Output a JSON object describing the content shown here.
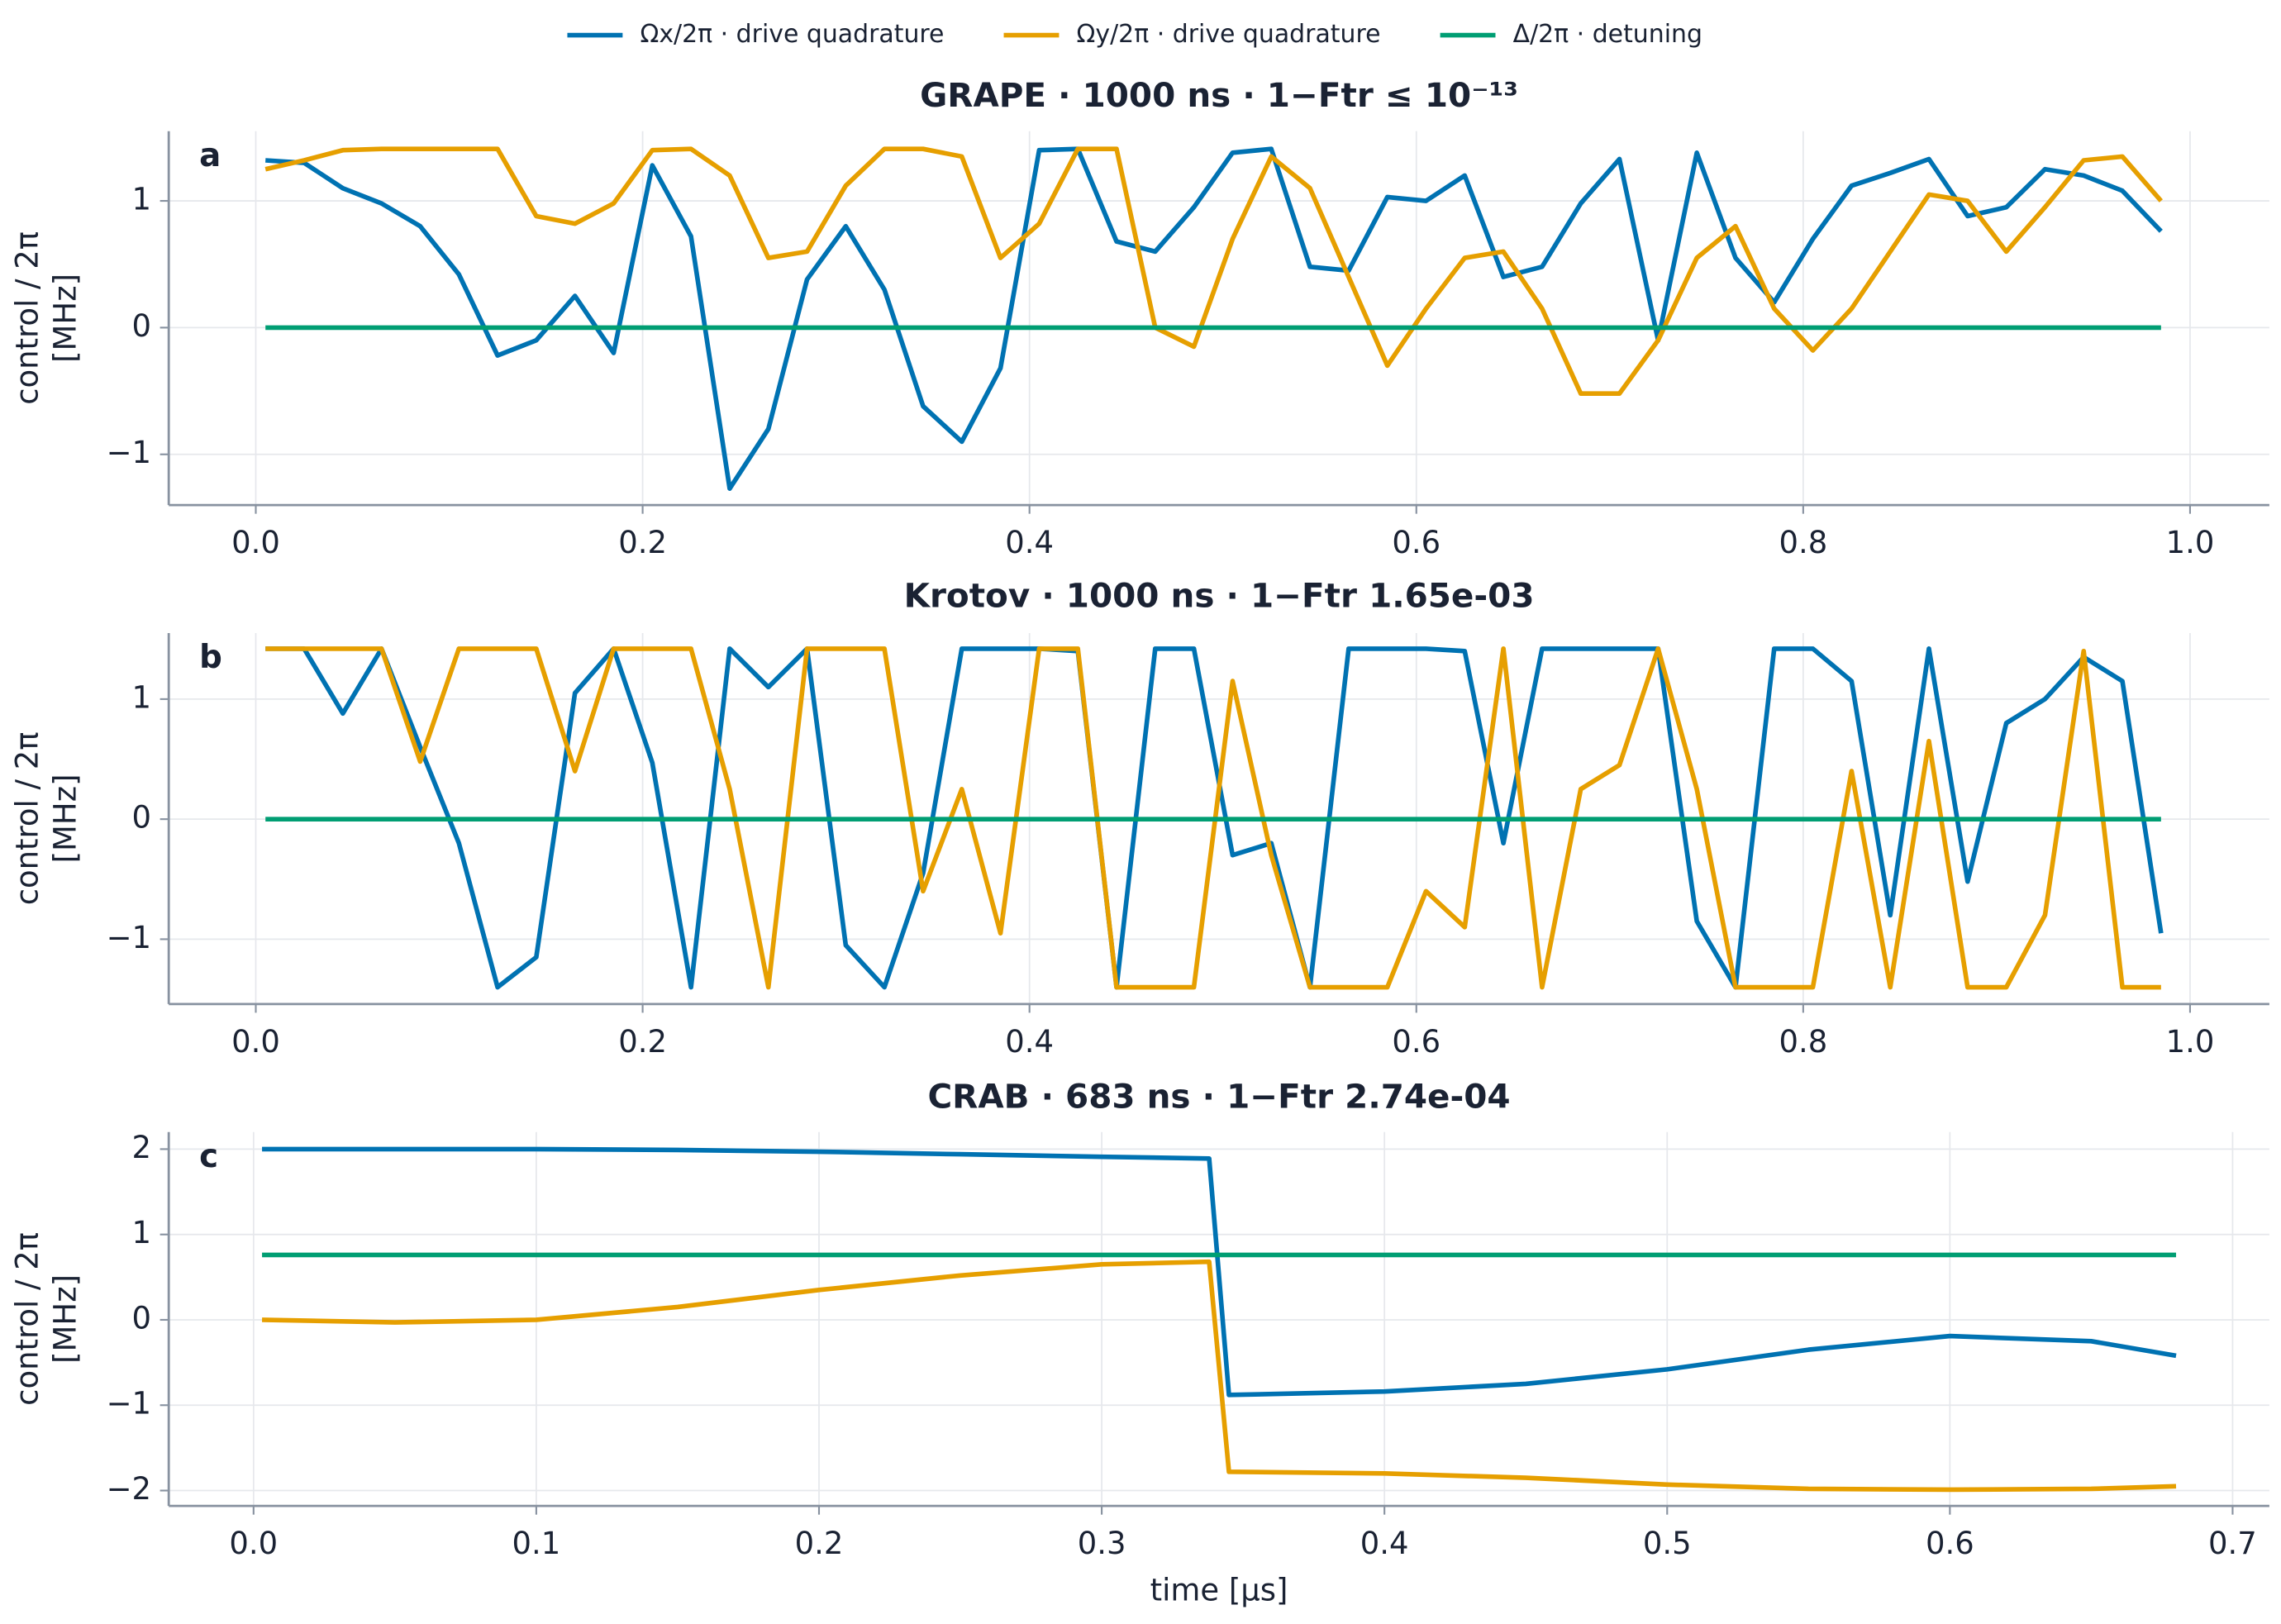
{
  "chart_data": [
    {
      "type": "line",
      "panel": "a",
      "title": "GRAPE · 1000 ns · 1−Ftr ≤ 10⁻¹³",
      "ylabel": [
        "control / 2π",
        "[MHz]"
      ],
      "xlim": [
        -0.045,
        1.041
      ],
      "ylim": [
        -1.4,
        1.55
      ],
      "grid": true,
      "xticks": [
        {
          "value": 0,
          "label": "0.0"
        },
        0.2,
        0.4,
        0.6,
        0.8,
        {
          "value": 1,
          "label": "1.0"
        }
      ],
      "yticks": [
        {
          "value": -1,
          "label": "−1"
        },
        0,
        1
      ],
      "x": [
        0.005,
        0.025,
        0.045,
        0.065,
        0.085,
        0.105,
        0.125,
        0.145,
        0.165,
        0.185,
        0.205,
        0.225,
        0.245,
        0.265,
        0.285,
        0.305,
        0.325,
        0.345,
        0.365,
        0.385,
        0.405,
        0.425,
        0.445,
        0.465,
        0.485,
        0.505,
        0.525,
        0.545,
        0.565,
        0.585,
        0.605,
        0.625,
        0.645,
        0.665,
        0.685,
        0.705,
        0.725,
        0.745,
        0.765,
        0.785,
        0.805,
        0.825,
        0.845,
        0.865,
        0.885,
        0.905,
        0.925,
        0.945,
        0.965,
        0.985
      ],
      "series": [
        {
          "name": "Ωx/2π · drive quadrature",
          "color": "#0072b2",
          "values": [
            1.32,
            1.3,
            1.1,
            0.98,
            0.8,
            0.42,
            -0.22,
            -0.1,
            0.25,
            -0.2,
            1.28,
            0.72,
            -1.27,
            -0.8,
            0.38,
            0.8,
            0.3,
            -0.62,
            -0.9,
            -0.32,
            1.4,
            1.41,
            0.68,
            0.6,
            0.95,
            1.38,
            1.41,
            0.48,
            0.45,
            1.03,
            1.0,
            1.2,
            0.4,
            0.48,
            0.98,
            1.33,
            -0.1,
            1.38,
            0.55,
            0.2,
            0.7,
            1.12,
            1.22,
            1.33,
            0.88,
            0.95,
            1.25,
            1.2,
            1.08,
            0.76
          ]
        },
        {
          "name": "Ωy/2π · drive quadrature",
          "color": "#e69f00",
          "values": [
            1.25,
            1.32,
            1.4,
            1.41,
            1.41,
            1.41,
            1.41,
            0.88,
            0.82,
            0.98,
            1.4,
            1.41,
            1.2,
            0.55,
            0.6,
            1.12,
            1.41,
            1.41,
            1.35,
            0.55,
            0.82,
            1.41,
            1.41,
            0.0,
            -0.15,
            0.7,
            1.35,
            1.1,
            0.4,
            -0.3,
            0.15,
            0.55,
            0.6,
            0.15,
            -0.52,
            -0.52,
            -0.1,
            0.55,
            0.8,
            0.15,
            -0.18,
            0.15,
            0.6,
            1.05,
            1.0,
            0.6,
            0.95,
            1.32,
            1.35,
            1.0
          ]
        },
        {
          "name": "Δ/2π · detuning",
          "color": "#009e73",
          "values": [
            0,
            0,
            0,
            0,
            0,
            0,
            0,
            0,
            0,
            0,
            0,
            0,
            0,
            0,
            0,
            0,
            0,
            0,
            0,
            0,
            0,
            0,
            0,
            0,
            0,
            0,
            0,
            0,
            0,
            0,
            0,
            0,
            0,
            0,
            0,
            0,
            0,
            0,
            0,
            0,
            0,
            0,
            0,
            0,
            0,
            0,
            0,
            0,
            0,
            0
          ]
        }
      ]
    },
    {
      "type": "line",
      "panel": "b",
      "title": "Krotov · 1000 ns · 1−Ftr 1.65e-03",
      "ylabel": [
        "control / 2π",
        "[MHz]"
      ],
      "xlim": [
        -0.045,
        1.041
      ],
      "ylim": [
        -1.54,
        1.55
      ],
      "grid": true,
      "xticks": [
        {
          "value": 0,
          "label": "0.0"
        },
        0.2,
        0.4,
        0.6,
        0.8,
        {
          "value": 1,
          "label": "1.0"
        }
      ],
      "yticks": [
        {
          "value": -1,
          "label": "−1"
        },
        0,
        1
      ],
      "x": [
        0.005,
        0.025,
        0.045,
        0.065,
        0.085,
        0.105,
        0.125,
        0.145,
        0.165,
        0.185,
        0.205,
        0.225,
        0.245,
        0.265,
        0.285,
        0.305,
        0.325,
        0.345,
        0.365,
        0.385,
        0.405,
        0.425,
        0.445,
        0.465,
        0.485,
        0.505,
        0.525,
        0.545,
        0.565,
        0.585,
        0.605,
        0.625,
        0.645,
        0.665,
        0.685,
        0.705,
        0.725,
        0.745,
        0.765,
        0.785,
        0.805,
        0.825,
        0.845,
        0.865,
        0.885,
        0.905,
        0.925,
        0.945,
        0.965,
        0.985
      ],
      "series": [
        {
          "color": "#0072b2",
          "values": [
            1.42,
            1.42,
            0.88,
            1.42,
            0.6,
            -0.2,
            -1.4,
            -1.15,
            1.05,
            1.42,
            0.47,
            -1.4,
            1.42,
            1.1,
            1.42,
            -1.05,
            -1.4,
            -0.45,
            1.42,
            1.42,
            1.42,
            1.4,
            -1.4,
            1.42,
            1.42,
            -0.3,
            -0.2,
            -1.4,
            1.42,
            1.42,
            1.42,
            1.4,
            -0.2,
            1.42,
            1.42,
            1.42,
            1.42,
            -0.85,
            -1.4,
            1.42,
            1.42,
            1.15,
            -0.8,
            1.42,
            -0.52,
            0.8,
            1.0,
            1.35,
            1.15,
            -0.95
          ]
        },
        {
          "color": "#e69f00",
          "values": [
            1.42,
            1.42,
            1.42,
            1.42,
            0.48,
            1.42,
            1.42,
            1.42,
            0.4,
            1.42,
            1.42,
            1.42,
            0.25,
            -1.4,
            1.42,
            1.42,
            1.42,
            -0.6,
            0.25,
            -0.95,
            1.42,
            1.42,
            -1.4,
            -1.4,
            -1.4,
            1.15,
            -0.3,
            -1.4,
            -1.4,
            -1.4,
            -0.6,
            -0.9,
            1.42,
            -1.4,
            0.25,
            0.45,
            1.42,
            0.25,
            -1.4,
            -1.4,
            -1.4,
            0.4,
            -1.4,
            0.65,
            -1.4,
            -1.4,
            -0.8,
            1.4,
            -1.4,
            -1.4
          ]
        },
        {
          "color": "#009e73",
          "values": [
            0,
            0,
            0,
            0,
            0,
            0,
            0,
            0,
            0,
            0,
            0,
            0,
            0,
            0,
            0,
            0,
            0,
            0,
            0,
            0,
            0,
            0,
            0,
            0,
            0,
            0,
            0,
            0,
            0,
            0,
            0,
            0,
            0,
            0,
            0,
            0,
            0,
            0,
            0,
            0,
            0,
            0,
            0,
            0,
            0,
            0,
            0,
            0,
            0,
            0
          ]
        }
      ]
    },
    {
      "type": "line",
      "panel": "c",
      "title": "CRAB · 683 ns · 1−Ftr 2.74e-04",
      "ylabel": [
        "control / 2π",
        "[MHz]"
      ],
      "xlabel": "time [μs]",
      "xlim": [
        -0.03,
        0.713
      ],
      "ylim": [
        -2.18,
        2.2
      ],
      "grid": true,
      "xticks": [
        {
          "value": 0,
          "label": "0.0"
        },
        0.1,
        0.2,
        0.3,
        0.4,
        0.5,
        0.6,
        0.7
      ],
      "yticks": [
        {
          "value": -2,
          "label": "−2"
        },
        {
          "value": -1,
          "label": "−1"
        },
        0,
        1,
        2
      ],
      "x": [
        0.003,
        0.05,
        0.1,
        0.15,
        0.2,
        0.25,
        0.3,
        0.338,
        0.345,
        0.4,
        0.45,
        0.5,
        0.55,
        0.6,
        0.65,
        0.68
      ],
      "series": [
        {
          "color": "#0072b2",
          "values": [
            2.0,
            2.0,
            2.0,
            1.99,
            1.97,
            1.94,
            1.91,
            1.89,
            -0.88,
            -0.84,
            -0.75,
            -0.58,
            -0.35,
            -0.19,
            -0.25,
            -0.42
          ]
        },
        {
          "color": "#e69f00",
          "values": [
            0.0,
            -0.03,
            0.0,
            0.15,
            0.35,
            0.52,
            0.65,
            0.68,
            -1.78,
            -1.8,
            -1.85,
            -1.93,
            -1.98,
            -1.99,
            -1.98,
            -1.95
          ]
        },
        {
          "color": "#009e73",
          "values": [
            0.76,
            0.76,
            0.76,
            0.76,
            0.76,
            0.76,
            0.76,
            0.76,
            0.76,
            0.76,
            0.76,
            0.76,
            0.76,
            0.76,
            0.76,
            0.76
          ]
        }
      ]
    }
  ]
}
